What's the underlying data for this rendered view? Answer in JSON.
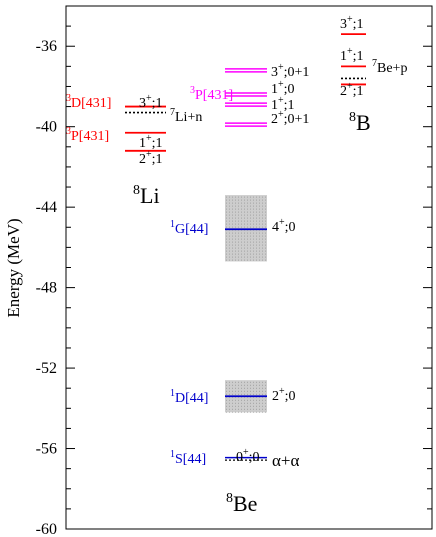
{
  "chart_data": {
    "type": "level-diagram",
    "ylabel": "Energy (MeV)",
    "ylim": [
      -60,
      -34
    ],
    "yticks": [
      -60,
      -56,
      -52,
      -48,
      -44,
      -40,
      -36
    ],
    "grid": false,
    "colors": {
      "red": "#ff0000",
      "magenta": "#ff00ff",
      "blue": "#0000cc",
      "black": "#000000",
      "band": "#aaaaaa"
    },
    "nuclei": [
      {
        "name": "Li",
        "mass": "8"
      },
      {
        "name": "Be",
        "mass": "8"
      },
      {
        "name": "B",
        "mass": "8"
      }
    ],
    "levels": [
      {
        "id": "li-3p",
        "nucleus": "Li",
        "energy": -41.2,
        "color": "red",
        "style": "solid",
        "label": {
          "jpi": "2",
          "parity": "+",
          "t": ";1"
        }
      },
      {
        "id": "li-1p",
        "nucleus": "Li",
        "energy": -40.3,
        "color": "red",
        "style": "solid",
        "label": {
          "jpi": "1",
          "parity": "+",
          "t": ";1"
        }
      },
      {
        "id": "li-n",
        "nucleus": "Li",
        "energy": -39.3,
        "color": "black",
        "style": "dotted",
        "label": {
          "mass": "7",
          "text": "Li+n"
        }
      },
      {
        "id": "li-3p2",
        "nucleus": "Li",
        "energy": -39.0,
        "color": "red",
        "style": "solid",
        "label": {
          "jpi": "3",
          "parity": "+",
          "t": ";1"
        }
      },
      {
        "id": "be-3p",
        "nucleus": "Be",
        "energy": -37.2,
        "color": "magenta",
        "style": "double",
        "label": {
          "jpi": "3",
          "parity": "+",
          "t": ";0+1"
        }
      },
      {
        "id": "be-1p1",
        "nucleus": "Be",
        "energy": -38.4,
        "color": "magenta",
        "style": "double",
        "label": {
          "jpi": "1",
          "parity": "+",
          "t": ";0"
        }
      },
      {
        "id": "be-1p0",
        "nucleus": "Be",
        "energy": -38.9,
        "color": "magenta",
        "style": "double",
        "label": {
          "jpi": "1",
          "parity": "+",
          "t": ";1"
        }
      },
      {
        "id": "be-2p",
        "nucleus": "Be",
        "energy": -39.9,
        "color": "magenta",
        "style": "double",
        "label": {
          "jpi": "2",
          "parity": "+",
          "t": ";0+1"
        }
      },
      {
        "id": "be-4p",
        "nucleus": "Be",
        "energy": -45.1,
        "color": "blue",
        "style": "solid",
        "label": {
          "jpi": "4",
          "parity": "+",
          "t": ";0"
        }
      },
      {
        "id": "be-2p0",
        "nucleus": "Be",
        "energy": -53.4,
        "color": "blue",
        "style": "solid",
        "label": {
          "jpi": "2",
          "parity": "+",
          "t": ";0"
        }
      },
      {
        "id": "be-0p",
        "nucleus": "Be",
        "energy": -56.5,
        "color": "blue",
        "style": "solid-dotted",
        "label": {
          "jpi": "0",
          "parity": "+",
          "t": ";0"
        }
      },
      {
        "id": "b-3p",
        "nucleus": "B",
        "energy": -35.4,
        "color": "red",
        "style": "solid",
        "label": {
          "jpi": "3",
          "parity": "+",
          "t": ";1"
        }
      },
      {
        "id": "b-1p",
        "nucleus": "B",
        "energy": -37.0,
        "color": "red",
        "style": "solid",
        "label": {
          "jpi": "1",
          "parity": "+",
          "t": ";1"
        }
      },
      {
        "id": "b-p",
        "nucleus": "B",
        "energy": -37.6,
        "color": "black",
        "style": "dotted",
        "label": {
          "mass": "7",
          "text": "Be+p"
        }
      },
      {
        "id": "b-2p",
        "nucleus": "B",
        "energy": -37.9,
        "color": "red",
        "style": "solid",
        "label": {
          "jpi": "2",
          "parity": "+",
          "t": ";1"
        }
      }
    ],
    "bands": [
      {
        "id": "band-4p",
        "from": -43.4,
        "to": -46.7
      },
      {
        "id": "band-2p",
        "from": -52.6,
        "to": -54.2
      }
    ],
    "labels": {
      "alpha": "α+α",
      "li_3d": "D[431]",
      "li_3d_sup": "3",
      "li_3p": "P[431]",
      "li_3p_sup": "3",
      "be_3p": "P[431]",
      "be_3p_sup": "3",
      "be_g": "G[44]",
      "be_d": "D[44]",
      "be_s": "S[44]",
      "be_sup": "1"
    }
  }
}
